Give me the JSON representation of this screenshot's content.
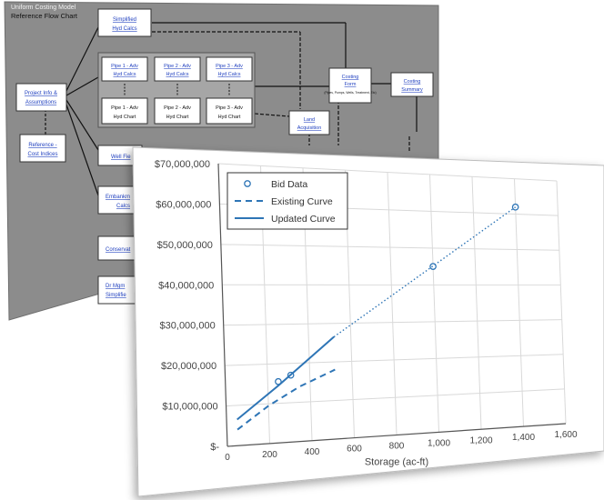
{
  "flowchart": {
    "title": "Uniform Costing Model",
    "subtitle": "Reference Flow Chart",
    "boxes": {
      "project_info": [
        "Project Info &",
        "Assumptions"
      ],
      "reference": [
        "Reference -",
        "Cost Indices"
      ],
      "simplified": [
        "Simplified",
        "Hyd Calcs"
      ],
      "pipe1_calcs": [
        "Pipe 1 - Adv",
        "Hyd Calcs"
      ],
      "pipe2_calcs": [
        "Pipe 2 - Adv",
        "Hyd Calcs"
      ],
      "pipe3_calcs": [
        "Pipe 3 - Adv",
        "Hyd Calcs"
      ],
      "pipe1_chart": [
        "Pipe 1 - Adv",
        "Hyd Chart"
      ],
      "pipe2_chart": [
        "Pipe 2 - Adv",
        "Hyd Chart"
      ],
      "pipe3_chart": [
        "Pipe 3 - Adv",
        "Hyd Chart"
      ],
      "costing_form": [
        "Costing",
        "Form"
      ],
      "costing_form_note": "(Pipes, Pumps, Wells, Treatment, Etc)",
      "costing_summary": [
        "Costing",
        "Summary"
      ],
      "land": [
        "Land",
        "Acquisition"
      ],
      "well": [
        "Well Fie"
      ],
      "embankment": [
        "Embankm",
        "Calcs"
      ],
      "conservation": [
        "Conservat"
      ],
      "dr_mgmt": [
        "Dr Mgm",
        "Simplifie"
      ]
    }
  },
  "chart_data": {
    "type": "scatter",
    "xlabel": "Storage (ac-ft)",
    "xlim": [
      0,
      1600
    ],
    "ylim": [
      0,
      70000000
    ],
    "x_ticks": [
      0,
      200,
      400,
      600,
      800,
      1000,
      1200,
      1400,
      1600
    ],
    "x_tick_labels": [
      "0",
      "200",
      "400",
      "600",
      "800",
      "1,000",
      "1,200",
      "1,400",
      "1,600"
    ],
    "y_ticks": [
      0,
      10000000,
      20000000,
      30000000,
      40000000,
      50000000,
      60000000,
      70000000
    ],
    "y_tick_labels": [
      "$-",
      "$10,000,000",
      "$20,000,000",
      "$30,000,000",
      "$40,000,000",
      "$50,000,000",
      "$60,000,000",
      "$70,000,000"
    ],
    "grid": true,
    "legend_position": "top-left",
    "colors": {
      "series": "#2e75b6",
      "axis": "#555555",
      "grid": "#d9d9d9"
    },
    "series": [
      {
        "name": "Bid Data",
        "style": "markers",
        "x": [
          250,
          310,
          1000,
          1400
        ],
        "y": [
          15500000,
          17000000,
          45000000,
          62000000
        ]
      },
      {
        "name": "Existing Curve",
        "style": "dashed",
        "x": [
          50,
          200,
          350,
          520
        ],
        "y": [
          4000000,
          9500000,
          14000000,
          18000000
        ]
      },
      {
        "name": "Updated Curve",
        "style": "solid",
        "x": [
          50,
          250,
          520
        ],
        "y": [
          6500000,
          14500000,
          26500000
        ]
      },
      {
        "style": "dotted",
        "x": [
          520,
          1400
        ],
        "y": [
          26500000,
          62000000
        ]
      }
    ]
  }
}
